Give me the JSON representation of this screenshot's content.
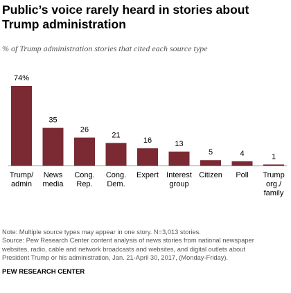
{
  "title": "Public’s voice rarely heard in stories about Trump administration",
  "subtitle": "% of Trump administration stories that cited each source type",
  "chart_data": {
    "type": "bar",
    "categories": [
      [
        "Trump/",
        "admin"
      ],
      [
        "News",
        "media"
      ],
      [
        "Cong.",
        "Rep."
      ],
      [
        "Cong.",
        "Dem."
      ],
      [
        "Expert"
      ],
      [
        "Interest",
        "group"
      ],
      [
        "Citizen"
      ],
      [
        "Poll"
      ],
      [
        "Trump",
        "org./",
        "family"
      ]
    ],
    "values": [
      74,
      35,
      26,
      21,
      16,
      13,
      5,
      4,
      1
    ],
    "value_labels": [
      "74%",
      "35",
      "26",
      "21",
      "16",
      "13",
      "5",
      "4",
      "1"
    ],
    "ylim": [
      0,
      74
    ],
    "grid": false,
    "bar_color": "#7b2a33"
  },
  "note_lines": [
    "Note: Multiple source types may appear in one story. N=3,013 stories.",
    "Source: Pew Research Center content analysis of news stories from national newspaper",
    "websites, radio, cable and network broadcasts and websites, and digital outlets about",
    "President Trump or his administration, Jan. 21-April 30, 2017, (Monday-Friday)."
  ],
  "footer": "PEW RESEARCH CENTER"
}
